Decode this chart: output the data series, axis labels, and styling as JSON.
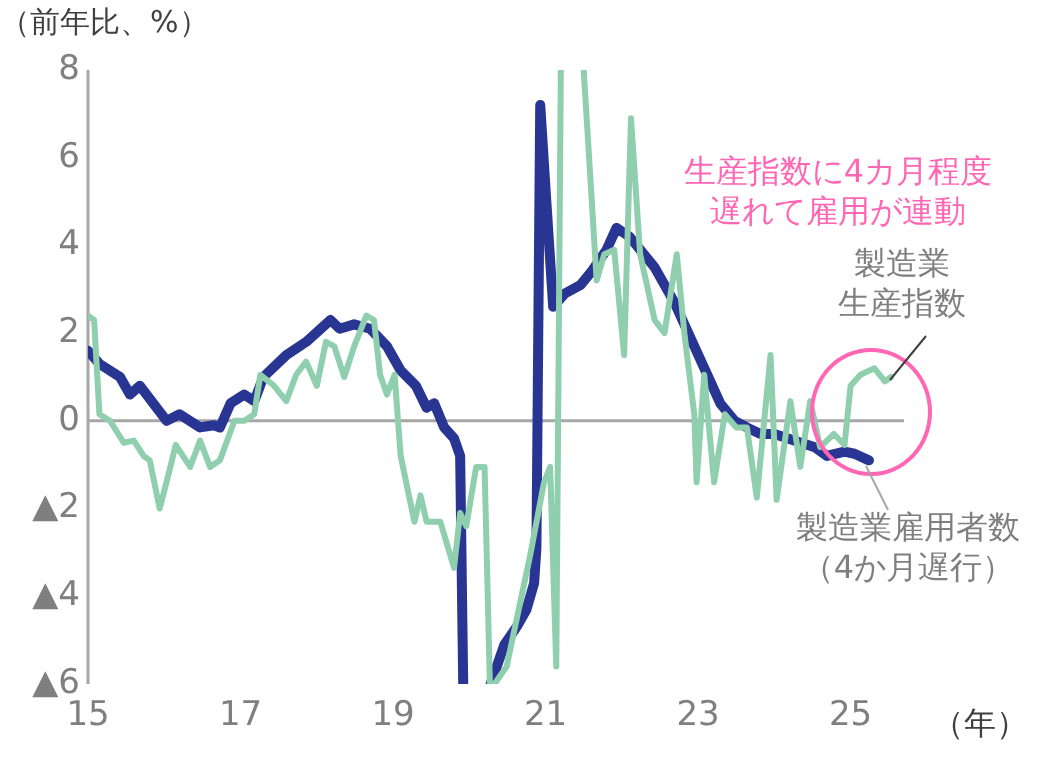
{
  "chart_data": {
    "type": "line",
    "ylabel": "（前年比、%）",
    "xlabel": "（年）",
    "xlim": [
      15,
      25.7
    ],
    "xticks": [
      15,
      17,
      19,
      21,
      23,
      25
    ],
    "ylim": [
      -6,
      8
    ],
    "yticks": [
      {
        "value": -6,
        "label": "▲6"
      },
      {
        "value": -4,
        "label": "▲4"
      },
      {
        "value": -2,
        "label": "▲2"
      },
      0,
      2,
      4,
      6,
      8
    ],
    "grid": false,
    "legend": false,
    "marker": "none",
    "line_style": "solid",
    "ref_lines": [
      {
        "axis": "y",
        "value": 0,
        "color": "#a6a6a6"
      }
    ],
    "annotations": [
      "生産指数に4カ月程度遅れて雇用が連動"
    ],
    "series": [
      {
        "name": "製造業生産指数",
        "color": "#8fcfae",
        "x": [
          15.0,
          15.08,
          15.15,
          15.29,
          15.47,
          15.6,
          15.73,
          15.81,
          15.94,
          16.08,
          16.15,
          16.34,
          16.47,
          16.6,
          16.73,
          16.92,
          17.05,
          17.18,
          17.26,
          17.44,
          17.6,
          17.73,
          17.86,
          18.0,
          18.12,
          18.23,
          18.36,
          18.49,
          18.65,
          18.75,
          18.83,
          18.92,
          19.02,
          19.1,
          19.28,
          19.36,
          19.44,
          19.62,
          19.8,
          19.88,
          19.96,
          20.09,
          20.2,
          20.27,
          20.3,
          20.33,
          20.49,
          20.8,
          20.98,
          21.06,
          21.14,
          21.2,
          21.35,
          21.5,
          21.67,
          21.77,
          21.9,
          22.03,
          22.12,
          22.24,
          22.43,
          22.56,
          22.72,
          22.82,
          22.95,
          22.98,
          23.08,
          23.21,
          23.35,
          23.5,
          23.64,
          23.77,
          23.95,
          24.03,
          24.21,
          24.34,
          24.47,
          24.6,
          24.78,
          24.92,
          25.0,
          25.13,
          25.31,
          25.45,
          25.53
        ],
        "values": [
          2.4,
          2.3,
          0.15,
          0.0,
          -0.5,
          -0.45,
          -0.8,
          -0.9,
          -2.0,
          -1.05,
          -0.55,
          -1.05,
          -0.45,
          -1.05,
          -0.9,
          0.0,
          0.0,
          0.15,
          1.05,
          0.8,
          0.45,
          1.05,
          1.35,
          0.8,
          1.8,
          1.7,
          1.0,
          1.7,
          2.4,
          2.3,
          1.05,
          0.6,
          1.05,
          -0.8,
          -2.3,
          -1.7,
          -2.3,
          -2.3,
          -3.35,
          -2.1,
          -2.4,
          -1.05,
          -1.05,
          -6,
          null,
          -6,
          -5.6,
          -3.05,
          -1.4,
          -1.05,
          -5.6,
          8,
          null,
          8,
          3.2,
          3.8,
          3.9,
          1.5,
          6.9,
          3.8,
          2.3,
          2.0,
          3.8,
          2.0,
          0.15,
          -1.4,
          1.05,
          -1.4,
          0.15,
          -0.15,
          -0.15,
          -1.75,
          1.5,
          -1.8,
          0.45,
          -1.05,
          0.45,
          -0.6,
          -0.3,
          -0.55,
          0.8,
          1.05,
          1.2,
          0.9,
          1.0
        ]
      },
      {
        "name": "製造業雇用者数（4か月遅行）",
        "color": "#283593",
        "x": [
          15.0,
          15.15,
          15.42,
          15.55,
          15.68,
          15.9,
          16.03,
          16.2,
          16.47,
          16.65,
          16.73,
          16.87,
          17.05,
          17.18,
          17.3,
          17.6,
          17.86,
          18.18,
          18.3,
          18.49,
          18.7,
          18.92,
          19.1,
          19.3,
          19.44,
          19.54,
          19.67,
          19.8,
          19.88,
          19.92,
          20.1,
          20.28,
          20.46,
          20.62,
          20.75,
          20.85,
          20.88,
          20.93,
          21.01,
          21.1,
          21.25,
          21.46,
          21.6,
          21.8,
          21.93,
          22.1,
          22.43,
          22.69,
          22.95,
          23.16,
          23.29,
          23.48,
          23.64,
          23.82,
          24.0,
          24.26,
          24.53,
          24.69,
          24.92,
          25.05,
          25.24
        ],
        "values": [
          1.6,
          1.3,
          1.0,
          0.6,
          0.8,
          0.3,
          0.0,
          0.15,
          -0.15,
          -0.1,
          -0.15,
          0.4,
          0.6,
          0.45,
          1.0,
          1.5,
          1.8,
          2.3,
          2.1,
          2.2,
          2.1,
          1.7,
          1.15,
          0.8,
          0.3,
          0.4,
          -0.15,
          -0.4,
          -0.8,
          -6,
          null,
          -6,
          -5.1,
          -4.7,
          -4.3,
          -3.7,
          -2.9,
          7.2,
          5.0,
          2.6,
          2.9,
          3.1,
          3.4,
          3.9,
          4.4,
          4.2,
          3.5,
          2.7,
          1.7,
          0.9,
          0.4,
          0.0,
          -0.15,
          -0.3,
          -0.3,
          -0.45,
          -0.6,
          -0.8,
          -0.7,
          -0.75,
          -0.9
        ]
      }
    ]
  }
}
